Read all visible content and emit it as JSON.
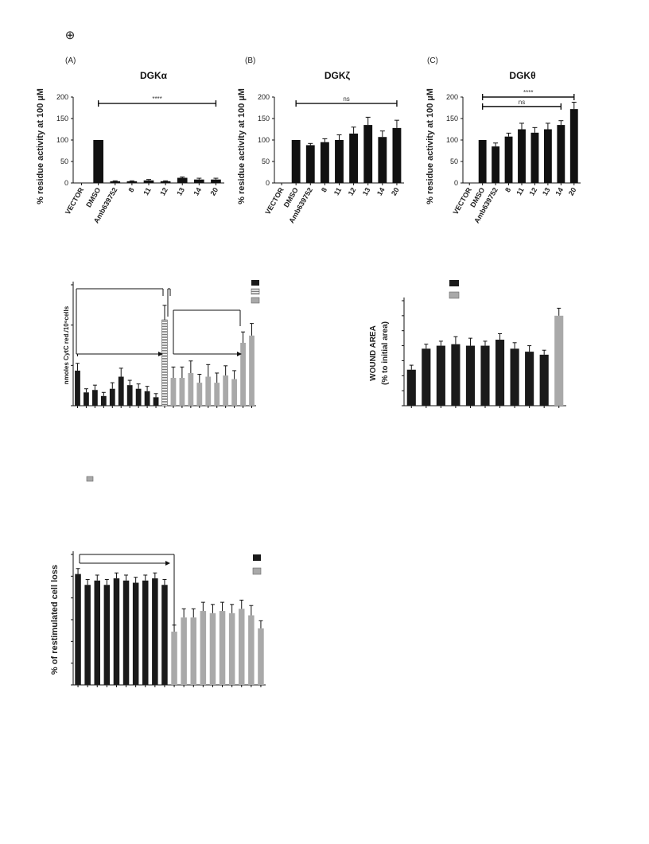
{
  "header": {
    "logo_glyph": "⊕"
  },
  "chart_data": [
    {
      "id": "dgka",
      "type": "bar",
      "panel_label": "(A)",
      "title": "DGKα",
      "ylabel": "% residue activity at 100 µM",
      "ylim": [
        0,
        200
      ],
      "yticks": [
        "0",
        "50",
        "100",
        "150",
        "200"
      ],
      "categories": [
        "VECTOR",
        "DMSO",
        "Amb639752",
        "8",
        "11",
        "12",
        "13",
        "14",
        "20"
      ],
      "values": [
        0,
        100,
        4,
        4,
        6,
        4,
        12,
        8,
        8
      ],
      "errors": [
        0,
        0,
        1,
        1,
        2,
        1,
        2,
        3,
        3
      ],
      "bar_color": "#111111",
      "annotations": [
        {
          "text": "****",
          "from": "DMSO",
          "to": "20",
          "y": 185
        }
      ]
    },
    {
      "id": "dgkz",
      "type": "bar",
      "panel_label": "(B)",
      "title": "DGKζ",
      "ylabel": "% residue activity at 100 µM",
      "ylim": [
        0,
        200
      ],
      "yticks": [
        "0",
        "50",
        "100",
        "150",
        "200"
      ],
      "categories": [
        "VECTOR",
        "DMSO",
        "Amb639752",
        "8",
        "11",
        "12",
        "13",
        "14",
        "20"
      ],
      "values": [
        0,
        100,
        88,
        95,
        100,
        115,
        135,
        107,
        128
      ],
      "errors": [
        0,
        0,
        4,
        8,
        12,
        15,
        18,
        14,
        18
      ],
      "bar_color": "#111111",
      "annotations": [
        {
          "text": "ns",
          "from": "DMSO",
          "to": "20",
          "y": 185
        }
      ]
    },
    {
      "id": "dgkt",
      "type": "bar",
      "panel_label": "(C)",
      "title": "DGKθ",
      "ylabel": "% residue activity at 100 µM",
      "ylim": [
        0,
        200
      ],
      "yticks": [
        "0",
        "50",
        "100",
        "150",
        "200"
      ],
      "categories": [
        "VECTOR",
        "DMSO",
        "Amb639752",
        "8",
        "11",
        "12",
        "13",
        "14",
        "20"
      ],
      "values": [
        0,
        100,
        85,
        108,
        125,
        117,
        125,
        135,
        172
      ],
      "errors": [
        0,
        0,
        8,
        8,
        14,
        12,
        14,
        10,
        16
      ],
      "bar_color": "#111111",
      "annotations": [
        {
          "text": "****",
          "from": "DMSO",
          "to": "20",
          "y": 200
        },
        {
          "text": "ns",
          "from": "DMSO",
          "to": "14",
          "y": 178
        }
      ]
    },
    {
      "id": "cytc",
      "type": "bar",
      "ylabel": "nmoles CytC red./10⁶cells",
      "ylim": [
        0,
        10
      ],
      "yticks": [
        "",
        "",
        "",
        ""
      ],
      "bars": [
        {
          "v": 2.9,
          "e": 0.6,
          "style": "black"
        },
        {
          "v": 1.1,
          "e": 0.3,
          "style": "black"
        },
        {
          "v": 1.3,
          "e": 0.4,
          "style": "black"
        },
        {
          "v": 0.8,
          "e": 0.3,
          "style": "black"
        },
        {
          "v": 1.4,
          "e": 0.5,
          "style": "black"
        },
        {
          "v": 2.4,
          "e": 0.7,
          "style": "black"
        },
        {
          "v": 1.7,
          "e": 0.4,
          "style": "black"
        },
        {
          "v": 1.4,
          "e": 0.4,
          "style": "black"
        },
        {
          "v": 1.2,
          "e": 0.4,
          "style": "black"
        },
        {
          "v": 0.7,
          "e": 0.3,
          "style": "black"
        },
        {
          "v": 7.1,
          "e": 1.2,
          "style": "hatched"
        },
        {
          "v": 2.3,
          "e": 0.9,
          "style": "gray"
        },
        {
          "v": 2.3,
          "e": 0.9,
          "style": "gray"
        },
        {
          "v": 2.7,
          "e": 1.0,
          "style": "gray"
        },
        {
          "v": 1.9,
          "e": 0.7,
          "style": "gray"
        },
        {
          "v": 2.4,
          "e": 1.0,
          "style": "gray"
        },
        {
          "v": 1.9,
          "e": 0.8,
          "style": "gray"
        },
        {
          "v": 2.5,
          "e": 0.8,
          "style": "gray"
        },
        {
          "v": 2.2,
          "e": 0.7,
          "style": "gray"
        },
        {
          "v": 5.2,
          "e": 0.9,
          "style": "gray"
        },
        {
          "v": 5.8,
          "e": 1.0,
          "style": "gray"
        }
      ],
      "legend": [
        {
          "style": "black"
        },
        {
          "style": "hatched"
        },
        {
          "style": "gray"
        }
      ]
    },
    {
      "id": "wound",
      "type": "bar",
      "ylabel_line1": "WOUND AREA",
      "ylabel_line2": "(% to initial area)",
      "ylim": [
        0,
        7
      ],
      "yticks": [
        "",
        "",
        "",
        "",
        "",
        "",
        "",
        ""
      ],
      "bars": [
        {
          "v": 2.4,
          "e": 0.3,
          "style": "black"
        },
        {
          "v": 3.8,
          "e": 0.3,
          "style": "black"
        },
        {
          "v": 4.0,
          "e": 0.3,
          "style": "black"
        },
        {
          "v": 4.1,
          "e": 0.5,
          "style": "black"
        },
        {
          "v": 4.0,
          "e": 0.5,
          "style": "black"
        },
        {
          "v": 4.0,
          "e": 0.3,
          "style": "black"
        },
        {
          "v": 4.4,
          "e": 0.4,
          "style": "black"
        },
        {
          "v": 3.8,
          "e": 0.4,
          "style": "black"
        },
        {
          "v": 3.6,
          "e": 0.4,
          "style": "black"
        },
        {
          "v": 3.4,
          "e": 0.3,
          "style": "black"
        },
        {
          "v": 6.0,
          "e": 0.5,
          "style": "gray"
        }
      ],
      "legend": [
        {
          "style": "black"
        },
        {
          "style": "gray"
        }
      ]
    },
    {
      "id": "cellloss",
      "type": "bar",
      "ylabel": "% of restimulated cell loss",
      "ylim": [
        0,
        6
      ],
      "yticks": [
        "",
        "",
        "",
        "",
        "",
        "",
        ""
      ],
      "bars": [
        {
          "v": 5.1,
          "e": 0.25,
          "style": "black"
        },
        {
          "v": 4.6,
          "e": 0.25,
          "style": "black"
        },
        {
          "v": 4.8,
          "e": 0.25,
          "style": "black"
        },
        {
          "v": 4.6,
          "e": 0.25,
          "style": "black"
        },
        {
          "v": 4.9,
          "e": 0.25,
          "style": "black"
        },
        {
          "v": 4.8,
          "e": 0.25,
          "style": "black"
        },
        {
          "v": 4.7,
          "e": 0.25,
          "style": "black"
        },
        {
          "v": 4.8,
          "e": 0.25,
          "style": "black"
        },
        {
          "v": 4.9,
          "e": 0.25,
          "style": "black"
        },
        {
          "v": 4.6,
          "e": 0.25,
          "style": "black"
        },
        {
          "v": 2.45,
          "e": 0.3,
          "style": "gray"
        },
        {
          "v": 3.1,
          "e": 0.4,
          "style": "gray"
        },
        {
          "v": 3.1,
          "e": 0.4,
          "style": "gray"
        },
        {
          "v": 3.4,
          "e": 0.4,
          "style": "gray"
        },
        {
          "v": 3.3,
          "e": 0.4,
          "style": "gray"
        },
        {
          "v": 3.4,
          "e": 0.4,
          "style": "gray"
        },
        {
          "v": 3.3,
          "e": 0.4,
          "style": "gray"
        },
        {
          "v": 3.5,
          "e": 0.4,
          "style": "gray"
        },
        {
          "v": 3.2,
          "e": 0.45,
          "style": "gray"
        },
        {
          "v": 2.6,
          "e": 0.35,
          "style": "gray"
        }
      ],
      "legend": [
        {
          "style": "black"
        },
        {
          "style": "gray"
        }
      ]
    }
  ],
  "colors": {
    "black": "#1a1a1a",
    "gray": "#a9a9a9",
    "hatched_fill": "#ffffff",
    "hatched_line": "#444444"
  }
}
